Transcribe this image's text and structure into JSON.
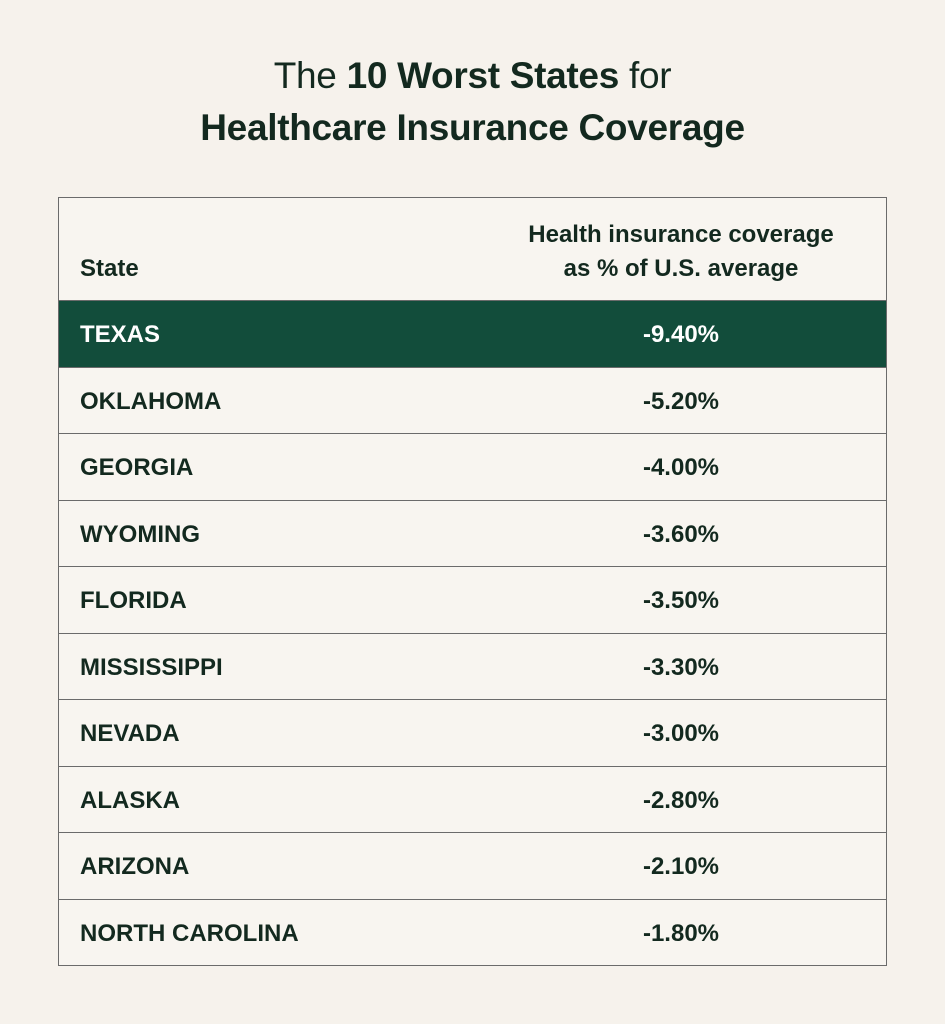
{
  "title": {
    "pre": "The ",
    "bold": "10 Worst States",
    "post": " for",
    "line2": "Healthcare Insurance Coverage"
  },
  "colors": {
    "background": "#f6f2ec",
    "highlight": "#124d3b",
    "text": "#13291f"
  },
  "chart_data": {
    "type": "table",
    "columns": [
      "State",
      "Health insurance coverage",
      "as % of U.S. average"
    ],
    "rows": [
      {
        "state": "TEXAS",
        "value": "-9.40%"
      },
      {
        "state": "OKLAHOMA",
        "value": "-5.20%"
      },
      {
        "state": "GEORGIA",
        "value": "-4.00%"
      },
      {
        "state": "WYOMING",
        "value": "-3.60%"
      },
      {
        "state": "FLORIDA",
        "value": "-3.50%"
      },
      {
        "state": "MISSISSIPPI",
        "value": "-3.30%"
      },
      {
        "state": "NEVADA",
        "value": "-3.00%"
      },
      {
        "state": "ALASKA",
        "value": "-2.80%"
      },
      {
        "state": "ARIZONA",
        "value": "-2.10%"
      },
      {
        "state": "NORTH CAROLINA",
        "value": "-1.80%"
      }
    ],
    "highlighted_row": 0
  }
}
